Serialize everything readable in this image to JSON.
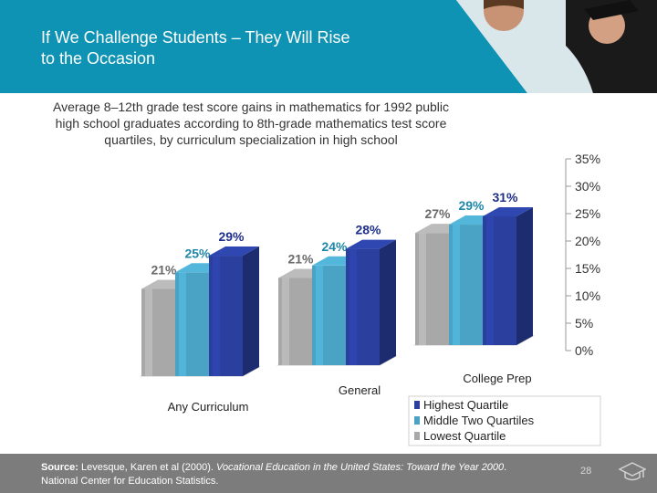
{
  "slide": {
    "title_lines": [
      "If We Challenge Students – They Will Rise",
      "to the Occasion"
    ],
    "subtitle_lines": [
      "Average 8–12th grade test score gains in mathematics for 1992 public",
      "high school graduates according to 8th-grade mathematics test score",
      "quartiles, by curriculum specialization in high school"
    ],
    "source": {
      "label": "Source:",
      "before_italic": " Levesque, Karen et al (2000). ",
      "italic": "Vocational Education in the United States: Toward the Year 2000",
      "after_italic": ". National Center for Education Statistics."
    },
    "page_number": "28",
    "icons": [
      "graduation-cap-icon"
    ],
    "colors": {
      "header": "#0f93b4",
      "footer": "#7c7c7c",
      "accent_label": "#1f3b8f"
    }
  },
  "chart_data": {
    "type": "bar",
    "chart_style": "3d-clustered-column",
    "categories": [
      "Any Curriculum",
      "General",
      "College Prep"
    ],
    "series": [
      {
        "name": "Lowest Quartile",
        "values": [
          21,
          21,
          27
        ],
        "color": "#a8a8a8",
        "label_color": "#6a6a6a"
      },
      {
        "name": "Middle Two Quartiles",
        "values": [
          25,
          24,
          29
        ],
        "color": "#4aa3c4",
        "label_color": "#1f87aa"
      },
      {
        "name": "Highest Quartile",
        "values": [
          29,
          28,
          31
        ],
        "color": "#2a3f9e",
        "label_color": "#1f2f8a"
      }
    ],
    "data_labels": [
      [
        "21%",
        "25%",
        "29%"
      ],
      [
        "21%",
        "24%",
        "28%"
      ],
      [
        "27%",
        "29%",
        "31%"
      ]
    ],
    "y_ticks": [
      "0%",
      "5%",
      "10%",
      "15%",
      "20%",
      "25%",
      "30%",
      "35%"
    ],
    "ylim": [
      0,
      35
    ],
    "legend": [
      "Highest Quartile",
      "Middle Two Quartiles",
      "Lowest Quartile"
    ],
    "legend_position": "bottom-right",
    "grid": false
  }
}
